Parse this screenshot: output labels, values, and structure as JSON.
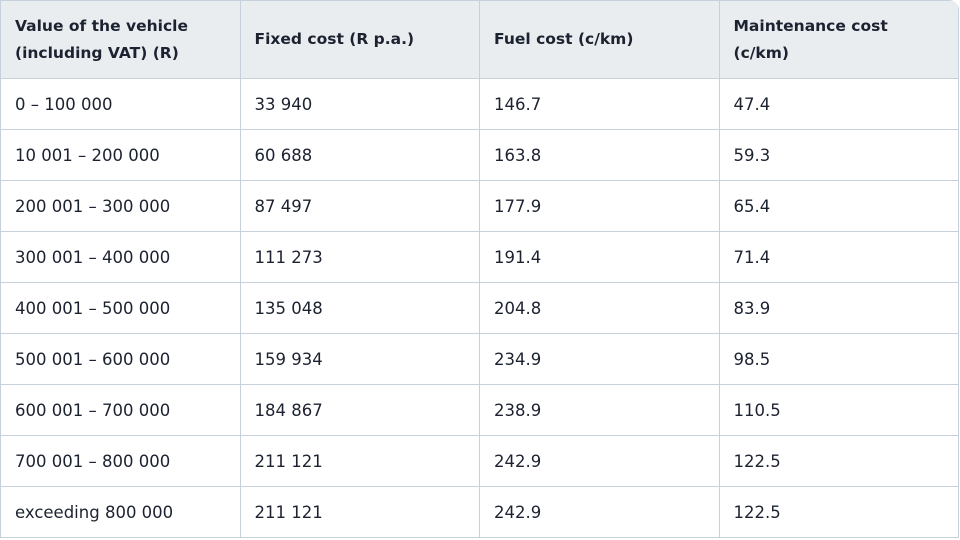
{
  "table": {
    "header": [
      "Value of the vehicle (including VAT) (R)",
      "Fixed cost (R p.a.)",
      "Fuel cost (c/km)",
      "Maintenance cost (c/km)"
    ],
    "rows": [
      [
        "0 – 100 000",
        "33 940",
        "146.7",
        "47.4"
      ],
      [
        "10 001 – 200 000",
        "60 688",
        "163.8",
        "59.3"
      ],
      [
        "200 001 – 300 000",
        "87 497",
        "177.9",
        "65.4"
      ],
      [
        "300 001 – 400 000",
        "111 273",
        "191.4",
        "71.4"
      ],
      [
        "400 001 – 500 000",
        "135 048",
        "204.8",
        "83.9"
      ],
      [
        "500 001 – 600 000",
        "159 934",
        "234.9",
        "98.5"
      ],
      [
        "600 001 – 700 000",
        "184 867",
        "238.9",
        "110.5"
      ],
      [
        "700 001 – 800 000",
        "211 121",
        "242.9",
        "122.5"
      ],
      [
        "exceeding 800 000",
        "211 121",
        "242.9",
        "122.5"
      ]
    ]
  }
}
